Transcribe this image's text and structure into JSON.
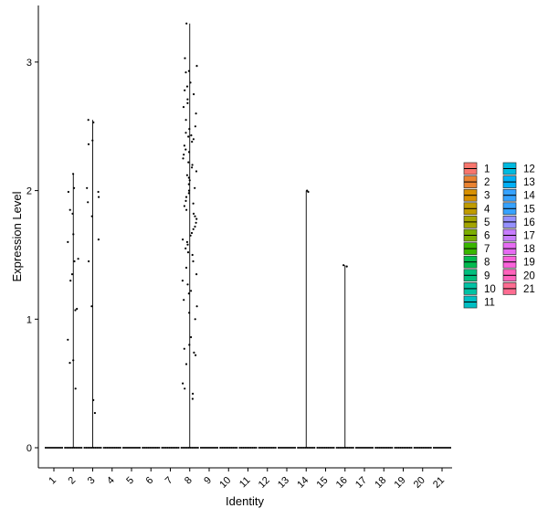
{
  "chart_data": {
    "type": "violin",
    "xlabel": "Identity",
    "ylabel": "Expression Level",
    "categories": [
      "1",
      "2",
      "3",
      "4",
      "5",
      "6",
      "7",
      "8",
      "9",
      "10",
      "11",
      "12",
      "13",
      "14",
      "15",
      "16",
      "17",
      "18",
      "19",
      "20",
      "21"
    ],
    "ylim": [
      -0.15,
      3.45
    ],
    "yticks": [
      0,
      1,
      2,
      3
    ],
    "category_max": [
      0,
      2.13,
      2.55,
      0,
      0,
      0,
      0,
      3.3,
      0,
      0,
      0,
      0,
      0,
      2.0,
      0,
      1.42,
      0,
      0,
      0,
      0,
      0
    ],
    "nonzero_points": {
      "2": [
        2.13,
        2.02,
        1.99,
        1.85,
        1.82,
        1.66,
        1.6,
        1.47,
        1.45,
        1.35,
        1.3,
        1.08,
        1.07,
        0.84,
        0.68,
        0.66,
        0.46
      ],
      "3": [
        2.55,
        2.53,
        2.39,
        2.36,
        2.02,
        1.99,
        1.95,
        1.91,
        1.8,
        1.62,
        1.45,
        1.1,
        0.37,
        0.27
      ],
      "8": [
        3.3,
        3.03,
        2.97,
        2.93,
        2.92,
        2.84,
        2.81,
        2.78,
        2.75,
        2.71,
        2.68,
        2.65,
        2.6,
        2.55,
        2.5,
        2.48,
        2.45,
        2.43,
        2.42,
        2.4,
        2.38,
        2.35,
        2.32,
        2.3,
        2.28,
        2.25,
        2.22,
        2.2,
        2.18,
        2.15,
        2.12,
        2.1,
        2.08,
        2.05,
        2.02,
        2.0,
        1.98,
        1.95,
        1.92,
        1.9,
        1.88,
        1.85,
        1.82,
        1.8,
        1.78,
        1.75,
        1.72,
        1.7,
        1.67,
        1.65,
        1.62,
        1.6,
        1.58,
        1.55,
        1.52,
        1.5,
        1.45,
        1.4,
        1.35,
        1.3,
        1.27,
        1.22,
        1.2,
        1.15,
        1.1,
        1.05,
        1.0,
        0.86,
        0.8,
        0.77,
        0.74,
        0.72,
        0.65,
        0.5,
        0.46,
        0.42,
        0.38
      ],
      "14": [
        2.0,
        1.99
      ],
      "16": [
        1.42,
        1.41
      ]
    },
    "legend_position": "right",
    "grid": false,
    "colors": [
      "#F8766D",
      "#EA8331",
      "#D89000",
      "#C09B00",
      "#A3A500",
      "#7CAE00",
      "#39B600",
      "#00BB4E",
      "#00BF7D",
      "#00C1A3",
      "#00BFC4",
      "#00BAE0",
      "#00B0F6",
      "#35A2FF",
      "#35A2FF",
      "#9590FF",
      "#C77CFF",
      "#E76BF3",
      "#FA62DB",
      "#FF62BC",
      "#FF6C91"
    ]
  }
}
